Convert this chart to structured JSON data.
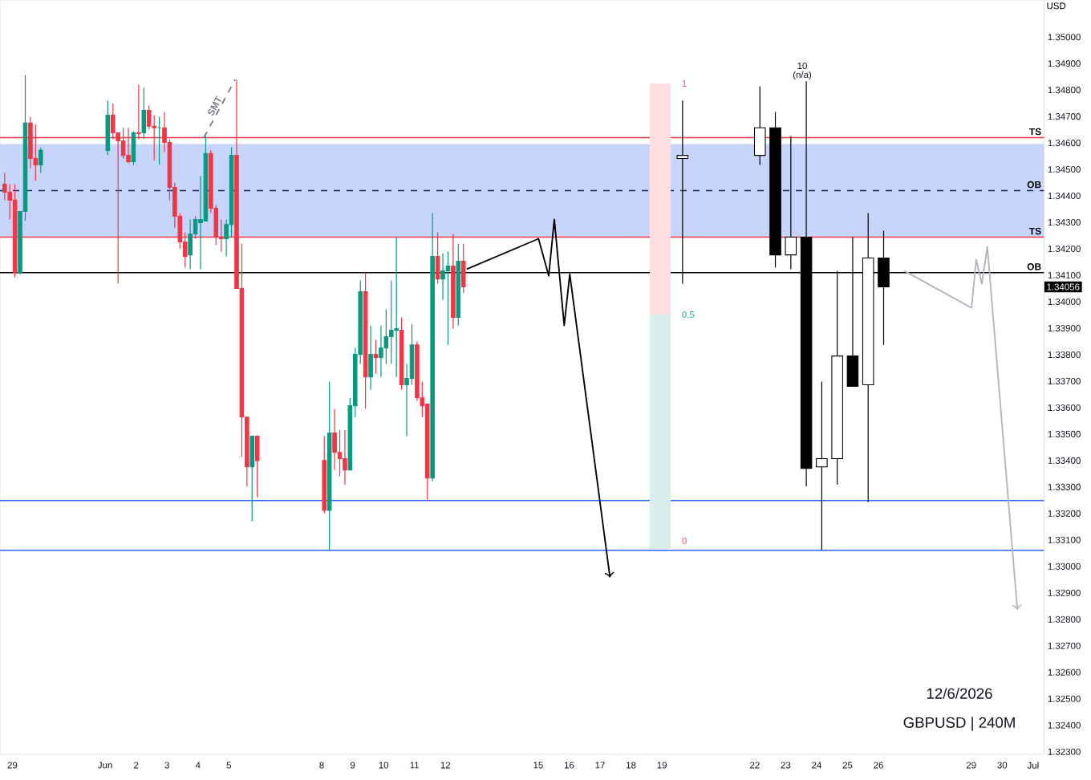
{
  "chart_data": {
    "type": "candlestick",
    "ylabel": "USD",
    "xlim": [
      "2026-05-28T14:24",
      "2026-07-01T08:24"
    ],
    "ylim": [
      1.3229,
      1.3514
    ],
    "xticks": [
      {
        "value": "2026-05-29",
        "label": "29"
      },
      {
        "value": "2026-06-01",
        "label": "Jun"
      },
      {
        "value": "2026-06-02",
        "label": "2"
      },
      {
        "value": "2026-06-03",
        "label": "3"
      },
      {
        "value": "2026-06-04",
        "label": "4"
      },
      {
        "value": "2026-06-05",
        "label": "5"
      },
      {
        "value": "2026-06-08",
        "label": "8"
      },
      {
        "value": "2026-06-09",
        "label": "9"
      },
      {
        "value": "2026-06-10",
        "label": "10"
      },
      {
        "value": "2026-06-11",
        "label": "11"
      },
      {
        "value": "2026-06-12",
        "label": "12"
      },
      {
        "value": "2026-06-15",
        "label": "15"
      },
      {
        "value": "2026-06-16",
        "label": "16"
      },
      {
        "value": "2026-06-17",
        "label": "17"
      },
      {
        "value": "2026-06-18",
        "label": "18"
      },
      {
        "value": "2026-06-19",
        "label": "19"
      },
      {
        "value": "2026-06-22",
        "label": "22"
      },
      {
        "value": "2026-06-23",
        "label": "23"
      },
      {
        "value": "2026-06-24",
        "label": "24"
      },
      {
        "value": "2026-06-25",
        "label": "25"
      },
      {
        "value": "2026-06-26",
        "label": "26"
      },
      {
        "value": "2026-06-29",
        "label": "29"
      },
      {
        "value": "2026-06-30",
        "label": "30"
      },
      {
        "value": "2026-07-01",
        "label": "Jul"
      }
    ],
    "yticks": [
      {
        "value": 1.323,
        "label": "1.32300"
      },
      {
        "value": 1.324,
        "label": "1.32400"
      },
      {
        "value": 1.325,
        "label": "1.32500"
      },
      {
        "value": 1.326,
        "label": "1.32600"
      },
      {
        "value": 1.327,
        "label": "1.32700"
      },
      {
        "value": 1.328,
        "label": "1.32800"
      },
      {
        "value": 1.329,
        "label": "1.32900"
      },
      {
        "value": 1.33,
        "label": "1.33000"
      },
      {
        "value": 1.331,
        "label": "1.33100"
      },
      {
        "value": 1.332,
        "label": "1.33200"
      },
      {
        "value": 1.333,
        "label": "1.33300"
      },
      {
        "value": 1.334,
        "label": "1.33400"
      },
      {
        "value": 1.335,
        "label": "1.33500"
      },
      {
        "value": 1.336,
        "label": "1.33600"
      },
      {
        "value": 1.337,
        "label": "1.33700"
      },
      {
        "value": 1.338,
        "label": "1.33800"
      },
      {
        "value": 1.339,
        "label": "1.33900"
      },
      {
        "value": 1.34,
        "label": "1.34000"
      },
      {
        "value": 1.34056,
        "label": "1.34056"
      },
      {
        "value": 1.341,
        "label": "1.34100"
      },
      {
        "value": 1.342,
        "label": "1.34200"
      },
      {
        "value": 1.343,
        "label": "1.34300"
      },
      {
        "value": 1.344,
        "label": "1.34400"
      },
      {
        "value": 1.345,
        "label": "1.34500"
      },
      {
        "value": 1.346,
        "label": "1.34600"
      },
      {
        "value": 1.347,
        "label": "1.34700"
      },
      {
        "value": 1.348,
        "label": "1.34800"
      },
      {
        "value": 1.349,
        "label": "1.34900"
      },
      {
        "value": 1.35,
        "label": "1.35000"
      }
    ],
    "series": [
      {
        "x": [
          "2026-05-28T18:00",
          "2026-05-28T22:00",
          "2026-05-29T02:00",
          "2026-05-29T06:00",
          "2026-05-29T10:00",
          "2026-05-29T14:00",
          "2026-05-29T18:00",
          "2026-05-29T22:00",
          "2026-06-01T02:00",
          "2026-06-01T06:00",
          "2026-06-01T10:00",
          "2026-06-01T14:00",
          "2026-06-01T18:00",
          "2026-06-01T22:00",
          "2026-06-02T02:00",
          "2026-06-02T06:00",
          "2026-06-02T10:00",
          "2026-06-02T14:00",
          "2026-06-02T18:00",
          "2026-06-02T22:00",
          "2026-06-03T02:00",
          "2026-06-03T06:00",
          "2026-06-03T10:00",
          "2026-06-03T14:00",
          "2026-06-03T18:00",
          "2026-06-03T22:00",
          "2026-06-04T02:00",
          "2026-06-04T06:00",
          "2026-06-04T10:00",
          "2026-06-04T14:00",
          "2026-06-04T18:00",
          "2026-06-04T22:00",
          "2026-06-05T02:00",
          "2026-06-05T06:00",
          "2026-06-05T10:00",
          "2026-06-05T14:00",
          "2026-06-05T18:00",
          "2026-06-05T22:00",
          "2026-06-08T02:00",
          "2026-06-08T06:00",
          "2026-06-08T10:00",
          "2026-06-08T14:00",
          "2026-06-08T18:00",
          "2026-06-08T22:00",
          "2026-06-09T02:00",
          "2026-06-09T06:00",
          "2026-06-09T10:00",
          "2026-06-09T14:00",
          "2026-06-09T18:00",
          "2026-06-09T22:00",
          "2026-06-10T02:00",
          "2026-06-10T06:00",
          "2026-06-10T10:00",
          "2026-06-10T14:00",
          "2026-06-10T18:00",
          "2026-06-10T22:00",
          "2026-06-11T02:00",
          "2026-06-11T06:00",
          "2026-06-11T10:00",
          "2026-06-11T14:00",
          "2026-06-11T18:00",
          "2026-06-11T22:00",
          "2026-06-12T02:00",
          "2026-06-12T06:00",
          "2026-06-12T10:00",
          "2026-06-12T14:00"
        ],
        "ohlc": [
          [
            1.34444,
            1.34487,
            1.34384,
            1.34414
          ],
          [
            1.34414,
            1.34444,
            1.34311,
            1.34384
          ],
          [
            1.34384,
            1.34444,
            1.34092,
            1.3411
          ],
          [
            1.3411,
            1.34341,
            1.34104,
            1.34341
          ],
          [
            1.34341,
            1.34857,
            1.34305,
            1.34675
          ],
          [
            1.34675,
            1.34699,
            1.34505,
            1.34541
          ],
          [
            1.34541,
            1.34669,
            1.34456,
            1.34517
          ],
          [
            1.34517,
            1.34584,
            1.34487,
            1.34572
          ],
          [
            1.34572,
            1.3476,
            1.34553,
            1.34705
          ],
          [
            1.34705,
            1.34748,
            1.34614,
            1.34638
          ],
          [
            1.34638,
            1.34638,
            1.34068,
            1.34608
          ],
          [
            1.34608,
            1.34657,
            1.34541,
            1.34553
          ],
          [
            1.34553,
            1.34657,
            1.34523,
            1.34529
          ],
          [
            1.34529,
            1.34644,
            1.34517,
            1.34638
          ],
          [
            1.34638,
            1.3482,
            1.34614,
            1.34635
          ],
          [
            1.34638,
            1.34808,
            1.34614,
            1.34723
          ],
          [
            1.34723,
            1.34742,
            1.34651,
            1.34663
          ],
          [
            1.34663,
            1.34705,
            1.34535,
            1.34657
          ],
          [
            1.34657,
            1.34699,
            1.34517,
            1.34657
          ],
          [
            1.34657,
            1.34717,
            1.34566,
            1.34602
          ],
          [
            1.34602,
            1.34614,
            1.34384,
            1.34432
          ],
          [
            1.34432,
            1.3445,
            1.3428,
            1.34323
          ],
          [
            1.34323,
            1.34335,
            1.34201,
            1.34226
          ],
          [
            1.34226,
            1.34262,
            1.34129,
            1.34171
          ],
          [
            1.34177,
            1.34311,
            1.34123,
            1.34256
          ],
          [
            1.34256,
            1.34323,
            1.34238,
            1.34311
          ],
          [
            1.34299,
            1.34475,
            1.34123,
            1.34311
          ],
          [
            1.34305,
            1.34626,
            1.34305,
            1.3456
          ],
          [
            1.3456,
            1.34572,
            1.34335,
            1.34353
          ],
          [
            1.34353,
            1.34365,
            1.34214,
            1.34244
          ],
          [
            1.34244,
            1.34311,
            1.34189,
            1.34238
          ],
          [
            1.34238,
            1.34311,
            1.34171,
            1.34292
          ],
          [
            1.34292,
            1.34584,
            1.34244,
            1.34553
          ],
          [
            1.34553,
            1.34839,
            1.3405,
            1.3405
          ],
          [
            1.3405,
            1.3422,
            1.33413,
            1.33564
          ],
          [
            1.33564,
            1.33564,
            1.33303,
            1.33376
          ],
          [
            1.33376,
            1.33492,
            1.3317,
            1.33492
          ],
          [
            1.33492,
            1.33492,
            1.33261,
            1.334
          ],
          [
            1.334,
            1.33492,
            1.332,
            1.33212
          ],
          [
            1.33212,
            1.33698,
            1.33061,
            1.33504
          ],
          [
            1.33504,
            1.33595,
            1.33364,
            1.33431
          ],
          [
            1.33431,
            1.33516,
            1.3334,
            1.33407
          ],
          [
            1.33407,
            1.33516,
            1.33309,
            1.33364
          ],
          [
            1.33364,
            1.33637,
            1.33364,
            1.33607
          ],
          [
            1.33607,
            1.33825,
            1.33564,
            1.33801
          ],
          [
            1.33801,
            1.3408,
            1.33765,
            1.34038
          ],
          [
            1.34038,
            1.3411,
            1.33595,
            1.33716
          ],
          [
            1.33716,
            1.3391,
            1.33667,
            1.33801
          ],
          [
            1.33801,
            1.33856,
            1.33728,
            1.33789
          ],
          [
            1.33789,
            1.3391,
            1.33716,
            1.33825
          ],
          [
            1.33825,
            1.33971,
            1.33765,
            1.33868
          ],
          [
            1.33868,
            1.3408,
            1.33765,
            1.33892
          ],
          [
            1.33892,
            1.34244,
            1.33716,
            1.33898
          ],
          [
            1.33892,
            1.33941,
            1.33667,
            1.33686
          ],
          [
            1.33686,
            1.33765,
            1.33492,
            1.3371
          ],
          [
            1.3371,
            1.33916,
            1.33686,
            1.33837
          ],
          [
            1.33837,
            1.3385,
            1.33625,
            1.33637
          ],
          [
            1.33637,
            1.33698,
            1.33564,
            1.33607
          ],
          [
            1.33613,
            1.33613,
            1.33249,
            1.33334
          ],
          [
            1.33334,
            1.34335,
            1.33322,
            1.34171
          ],
          [
            1.34171,
            1.34262,
            1.34068,
            1.34086
          ],
          [
            1.34086,
            1.34183,
            1.34007,
            1.34117
          ],
          [
            1.34117,
            1.34189,
            1.33837,
            1.34135
          ],
          [
            1.34135,
            1.34256,
            1.33898,
            1.33941
          ],
          [
            1.33941,
            1.3422,
            1.3391,
            1.34153
          ],
          [
            1.34153,
            1.3422,
            1.34032,
            1.34056
          ]
        ],
        "colors": [
          "#f23645",
          "#f23645",
          "#f23645",
          "#089981",
          "#089981",
          "#f23645",
          "#f23645",
          "#089981",
          "#089981",
          "#f23645",
          "#f23645",
          "#f23645",
          "#f23645",
          "#089981",
          "#f23645",
          "#089981",
          "#f23645",
          "#f23645",
          "#089981",
          "#f23645",
          "#f23645",
          "#f23645",
          "#f23645",
          "#f23645",
          "#089981",
          "#089981",
          "#089981",
          "#089981",
          "#f23645",
          "#f23645",
          "#f23645",
          "#089981",
          "#089981",
          "#f23645",
          "#f23645",
          "#f23645",
          "#089981",
          "#f23645",
          "#f23645",
          "#089981",
          "#f23645",
          "#f23645",
          "#f23645",
          "#089981",
          "#089981",
          "#089981",
          "#f23645",
          "#089981",
          "#f23645",
          "#089981",
          "#089981",
          "#089981",
          "#089981",
          "#f23645",
          "#089981",
          "#089981",
          "#f23645",
          "#f23645",
          "#f23645",
          "#089981",
          "#f23645",
          "#089981",
          "#089981",
          "#f23645",
          "#089981",
          "#f23645"
        ]
      },
      {
        "color": "#000000",
        "x": [
          "2026-06-19T16:00",
          "2026-06-22T04:00",
          "2026-06-22T16:00",
          "2026-06-23T04:00",
          "2026-06-23T16:00",
          "2026-06-24T04:00",
          "2026-06-24T16:00",
          "2026-06-25T04:00",
          "2026-06-25T16:00",
          "2026-06-26T04:00"
        ],
        "ohlc": [
          [
            1.34541,
            1.3476,
            1.34068,
            1.34553
          ],
          [
            1.34553,
            1.34814,
            1.34517,
            1.34657
          ],
          [
            1.34657,
            1.34717,
            1.34129,
            1.34177
          ],
          [
            1.34177,
            1.34626,
            1.34123,
            1.34244
          ],
          [
            1.34244,
            1.34833,
            1.33303,
            1.3337
          ],
          [
            1.33376,
            1.33698,
            1.33061,
            1.33407
          ],
          [
            1.33407,
            1.34117,
            1.33309,
            1.33795
          ],
          [
            1.33795,
            1.34244,
            1.3368,
            1.3368
          ],
          [
            1.33686,
            1.34335,
            1.33243,
            1.34165
          ],
          [
            1.34165,
            1.34268,
            1.33837,
            1.34056
          ]
        ],
        "colors": [
          "#ffffff",
          "#ffffff",
          "#000000",
          "#ffffff",
          "#000000",
          "#ffffff",
          "#ffffff",
          "#000000",
          "#ffffff",
          "#000000"
        ]
      },
      {
        "type": "line",
        "name": "SMT",
        "color": "#787b86",
        "line_style": "dashed",
        "x": [
          "2026-06-04T04:34",
          "2026-06-05T04:48"
        ],
        "values": [
          1.3462,
          1.34839
        ]
      },
      {
        "type": "line",
        "color": "#000000",
        "x": [
          "2026-06-12T16:34",
          "2026-06-15T00:14",
          "2026-06-15T08:10",
          "2026-06-15T12:29",
          "2026-06-15T20:10",
          "2026-06-16T00:29",
          "2026-06-17T07:41"
        ],
        "values": [
          1.34123,
          1.34238,
          1.34098,
          1.34311,
          1.3391,
          1.34104,
          1.32958
        ]
      },
      {
        "type": "line",
        "color": "#b2b5be",
        "x": [
          "2026-06-26T19:55",
          "2026-06-29T00:14",
          "2026-06-29T03:50",
          "2026-06-29T08:10",
          "2026-06-29T12:29",
          "2026-06-30T11:46"
        ],
        "values": [
          1.34117,
          1.33977,
          1.34159,
          1.34068,
          1.34208,
          1.32836
        ]
      }
    ],
    "bands": [
      {
        "axis": "y",
        "from": 1.34244,
        "to": 1.34596,
        "color": "#c8d5fb"
      }
    ],
    "ref_lines": [
      {
        "axis": "y",
        "value": 1.3462,
        "label": "TS",
        "color": "#f23645"
      },
      {
        "axis": "y",
        "value": 1.34244,
        "label": "TS",
        "color": "#f23645"
      },
      {
        "axis": "y",
        "value": 1.3442,
        "label": "OB",
        "color": "#1e2a5a",
        "line_style": "dashed"
      },
      {
        "axis": "y",
        "value": 1.3411,
        "label": "OB",
        "color": "#000000"
      },
      {
        "axis": "y",
        "value": 1.33249,
        "color": "#2962ff"
      },
      {
        "axis": "y",
        "value": 1.33061,
        "color": "#2962ff"
      }
    ],
    "annotations": [
      "1",
      "0.5",
      "0",
      "10",
      "(n/a)",
      "12/6/2026",
      "GBPUSD | 240M"
    ]
  }
}
